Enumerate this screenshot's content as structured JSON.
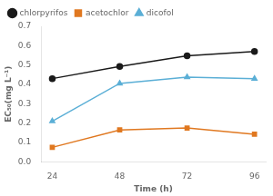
{
  "chart_data": {
    "type": "line",
    "x": [
      24,
      48,
      72,
      96
    ],
    "series": [
      {
        "name": "chlorpyrifos",
        "color": "#1a1a1a",
        "marker": "circle",
        "line_style": "solid",
        "values": [
          0.43,
          0.493,
          0.548,
          0.57
        ]
      },
      {
        "name": "acetochlor",
        "color": "#e07820",
        "marker": "square",
        "line_style": "solid",
        "values": [
          0.075,
          0.165,
          0.175,
          0.143
        ]
      },
      {
        "name": "dicofol",
        "color": "#5bafd6",
        "marker": "triangle",
        "line_style": "solid",
        "values": [
          0.21,
          0.405,
          0.438,
          0.43
        ]
      }
    ],
    "x_label": "Time (h)",
    "y_label": "EC₅₀(mg L⁻¹)",
    "xlim": [
      20,
      100
    ],
    "xticks": [
      24,
      48,
      72,
      96
    ],
    "ylim": [
      0,
      0.7
    ],
    "yticks": [
      {
        "value": 0,
        "label": "0.0"
      },
      0.1,
      0.2,
      0.3,
      0.4,
      0.5,
      0.6,
      0.7
    ],
    "grid": false,
    "legend": "upper left"
  }
}
